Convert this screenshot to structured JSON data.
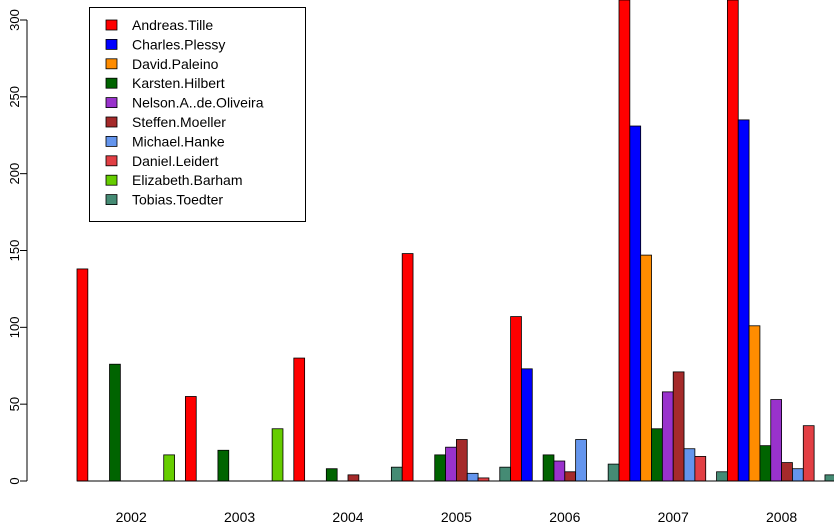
{
  "chart_data": {
    "type": "bar",
    "title": "",
    "xlabel": "",
    "ylabel": "",
    "ylim": [
      0,
      310
    ],
    "yticks": [
      0,
      50,
      100,
      150,
      200,
      250,
      300
    ],
    "grid": false,
    "legend_position": "top-left",
    "categories": [
      "2002",
      "2003",
      "2004",
      "2005",
      "2006",
      "2007",
      "2008"
    ],
    "series": [
      {
        "name": "Andreas.Tille",
        "color": "#ff0000",
        "values": [
          138,
          55,
          80,
          148,
          107,
          320,
          320
        ]
      },
      {
        "name": "Charles.Plessy",
        "color": "#0000ff",
        "values": [
          0,
          0,
          0,
          0,
          73,
          231,
          235
        ]
      },
      {
        "name": "David.Paleino",
        "color": "#ff8c00",
        "values": [
          0,
          0,
          0,
          0,
          0,
          147,
          101
        ]
      },
      {
        "name": "Karsten.Hilbert",
        "color": "#006400",
        "values": [
          76,
          20,
          8,
          17,
          17,
          34,
          23
        ]
      },
      {
        "name": "Nelson.A..de.Oliveira",
        "color": "#9932cc",
        "values": [
          0,
          0,
          0,
          22,
          13,
          58,
          53
        ]
      },
      {
        "name": "Steffen.Moeller",
        "color": "#a52a2a",
        "values": [
          0,
          0,
          4,
          27,
          6,
          71,
          12
        ]
      },
      {
        "name": "Michael.Hanke",
        "color": "#6495ed",
        "values": [
          0,
          0,
          0,
          5,
          27,
          21,
          8
        ]
      },
      {
        "name": "Daniel.Leidert",
        "color": "#e23f44",
        "values": [
          0,
          0,
          0,
          2,
          0,
          16,
          36
        ]
      },
      {
        "name": "Elizabeth.Barham",
        "color": "#66cd00",
        "values": [
          17,
          34,
          0,
          0,
          0,
          0,
          0
        ]
      },
      {
        "name": "Tobias.Toedter",
        "color": "#458b74",
        "values": [
          0,
          0,
          9,
          9,
          11,
          6,
          4
        ]
      }
    ]
  }
}
